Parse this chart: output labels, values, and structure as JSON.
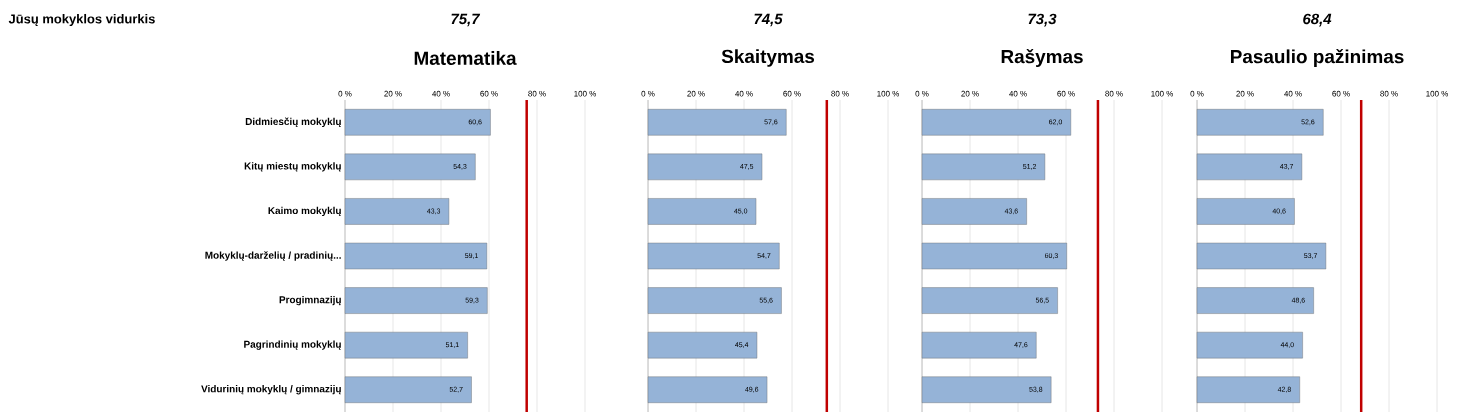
{
  "chart_data": [
    {
      "type": "bar",
      "orientation": "horizontal",
      "title": "Matematika",
      "categories": [
        "Didmiesčių mokyklų",
        "Kitų miestų mokyklų",
        "Kaimo mokyklų",
        "Mokyklų-darželių / pradinių...",
        "Progimnazijų",
        "Pagrindinių mokyklų",
        "Vidurinių mokyklų / gimnazijų"
      ],
      "values": [
        60.6,
        54.3,
        43.3,
        59.1,
        59.3,
        51.1,
        52.7
      ],
      "value_labels": [
        "60,6",
        "54,3",
        "43,3",
        "59,1",
        "59,3",
        "51,1",
        "52,7"
      ],
      "color": "#95b3d7",
      "xlim": [
        0,
        100
      ],
      "xticks": [
        {
          "value": 0,
          "label": "0 %"
        },
        {
          "value": 20,
          "label": "20 %"
        },
        {
          "value": 40,
          "label": "40 %"
        },
        {
          "value": 60,
          "label": "60 %"
        },
        {
          "value": 80,
          "label": "80 %"
        },
        {
          "value": 100,
          "label": "100 %"
        }
      ],
      "grid": "x",
      "subtitle": "75,7",
      "ref_lines": [
        {
          "axis": "x",
          "value": 75.7,
          "color": "#c00000"
        }
      ],
      "annotations": [
        "Jūsų mokyklos vidurkis"
      ]
    },
    {
      "type": "bar",
      "orientation": "horizontal",
      "title": "Skaitymas",
      "categories": [
        null,
        null,
        null,
        null,
        null,
        null,
        null
      ],
      "values": [
        57.6,
        47.5,
        45.0,
        54.7,
        55.6,
        45.4,
        49.6
      ],
      "value_labels": [
        "57,6",
        "47,5",
        "45,0",
        "54,7",
        "55,6",
        "45,4",
        "49,6"
      ],
      "color": "#95b3d7",
      "xlim": [
        0,
        100
      ],
      "xticks": [
        {
          "value": 0,
          "label": "0 %"
        },
        {
          "value": 20,
          "label": "20 %"
        },
        {
          "value": 40,
          "label": "40 %"
        },
        {
          "value": 60,
          "label": "60 %"
        },
        {
          "value": 80,
          "label": "80 %"
        },
        {
          "value": 100,
          "label": "100 %"
        }
      ],
      "grid": "x",
      "tick_labels": "x",
      "subtitle": "74,5",
      "ref_lines": [
        {
          "axis": "x",
          "value": 74.5,
          "color": "#c00000"
        }
      ]
    },
    {
      "type": "bar",
      "orientation": "horizontal",
      "title": "Rašymas",
      "categories": [
        null,
        null,
        null,
        null,
        null,
        null,
        null
      ],
      "values": [
        62.0,
        51.2,
        43.6,
        60.3,
        56.5,
        47.6,
        53.8
      ],
      "value_labels": [
        "62,0",
        "51,2",
        "43,6",
        "60,3",
        "56,5",
        "47,6",
        "53,8"
      ],
      "color": "#95b3d7",
      "xlim": [
        0,
        100
      ],
      "xticks": [
        {
          "value": 0,
          "label": "0 %"
        },
        {
          "value": 20,
          "label": "20 %"
        },
        {
          "value": 40,
          "label": "40 %"
        },
        {
          "value": 60,
          "label": "60 %"
        },
        {
          "value": 80,
          "label": "80 %"
        },
        {
          "value": 100,
          "label": "100 %"
        }
      ],
      "grid": "x",
      "tick_labels": "x",
      "subtitle": "73,3",
      "ref_lines": [
        {
          "axis": "x",
          "value": 73.3,
          "color": "#c00000"
        }
      ]
    },
    {
      "type": "bar",
      "orientation": "horizontal",
      "title": "Pasaulio pažinimas",
      "categories": [
        null,
        null,
        null,
        null,
        null,
        null,
        null
      ],
      "values": [
        52.6,
        43.7,
        40.6,
        53.7,
        48.6,
        44.0,
        42.8
      ],
      "value_labels": [
        "52,6",
        "43,7",
        "40,6",
        "53,7",
        "48,6",
        "44,0",
        "42,8"
      ],
      "color": "#95b3d7",
      "xlim": [
        0,
        100
      ],
      "xticks": [
        {
          "value": 0,
          "label": "0 %"
        },
        {
          "value": 20,
          "label": "20 %"
        },
        {
          "value": 40,
          "label": "40 %"
        },
        {
          "value": 60,
          "label": "60 %"
        },
        {
          "value": 80,
          "label": "80 %"
        },
        {
          "value": 100,
          "label": "100 %"
        }
      ],
      "grid": "x",
      "tick_labels": "x",
      "subtitle": "68,4",
      "ref_lines": [
        {
          "axis": "x",
          "value": 68.4,
          "color": "#c00000"
        }
      ]
    }
  ]
}
